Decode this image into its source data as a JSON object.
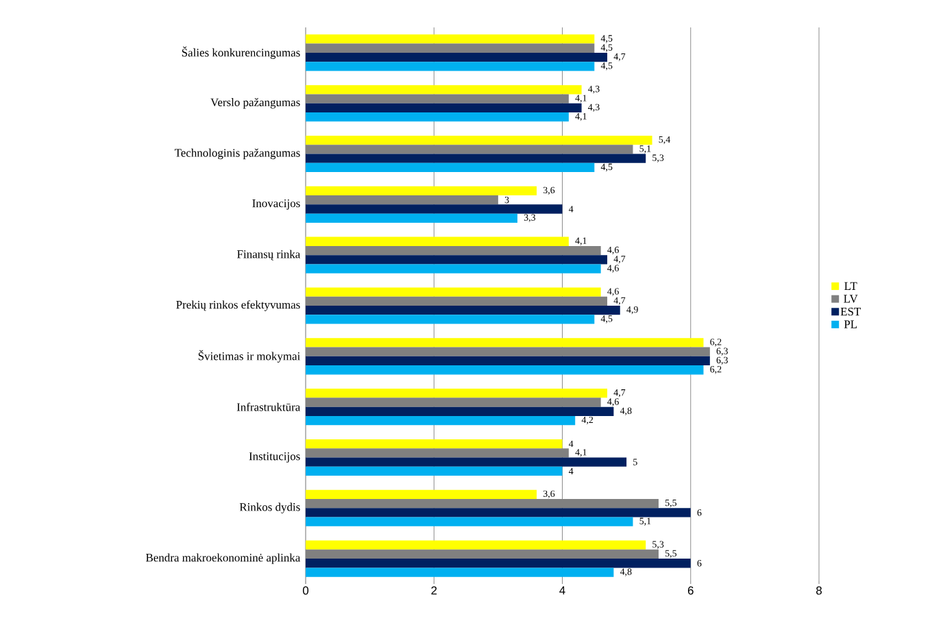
{
  "chart_data": {
    "type": "bar",
    "orientation": "horizontal",
    "categories": [
      "Šalies konkurencingumas",
      "Verslo pažangumas",
      "Technologinis pažangumas",
      "Inovacijos",
      "Finansų rinka",
      "Prekių rinkos efektyvumas",
      "Švietimas ir mokymai",
      "Infrastruktūra",
      "Institucijos",
      "Rinkos dydis",
      "Bendra makroekonominė aplinka"
    ],
    "series": [
      {
        "name": "LT",
        "color": "#ffff00",
        "values": [
          4.5,
          4.3,
          5.4,
          3.6,
          4.1,
          4.6,
          6.2,
          4.7,
          4,
          3.6,
          5.3
        ],
        "value_labels": [
          "4,5",
          "4,3",
          "5,4",
          "3,6",
          "4,1",
          "4,6",
          "6,2",
          "4,7",
          "4",
          "3,6",
          "5,3"
        ]
      },
      {
        "name": "LV",
        "color": "#808080",
        "values": [
          4.5,
          4.1,
          5.1,
          3,
          4.6,
          4.7,
          6.3,
          4.6,
          4.1,
          5.5,
          5.5
        ],
        "value_labels": [
          "4,5",
          "4,1",
          "5,1",
          "3",
          "4,6",
          "4,7",
          "6,3",
          "4,6",
          "4,1",
          "5,5",
          "5,5"
        ]
      },
      {
        "name": "EST",
        "color": "#002060",
        "values": [
          4.7,
          4.3,
          5.3,
          4,
          4.7,
          4.9,
          6.3,
          4.8,
          5,
          6,
          6
        ],
        "value_labels": [
          "4,7",
          "4,3",
          "5,3",
          "4",
          "4,7",
          "4,9",
          "6,3",
          "4,8",
          "5",
          "6",
          "6"
        ]
      },
      {
        "name": "PL",
        "color": "#00b0f0",
        "values": [
          4.5,
          4.1,
          4.5,
          3.3,
          4.6,
          4.5,
          6.2,
          4.2,
          4,
          5.1,
          4.8
        ],
        "value_labels": [
          "4,5",
          "4,1",
          "4,5",
          "3,3",
          "4,6",
          "4,5",
          "6,2",
          "4,2",
          "4",
          "5,1",
          "4,8"
        ]
      }
    ],
    "xlim": [
      0,
      8
    ],
    "xticks": [
      0,
      2,
      4,
      6,
      8
    ],
    "grid": "x",
    "legend": "right"
  }
}
